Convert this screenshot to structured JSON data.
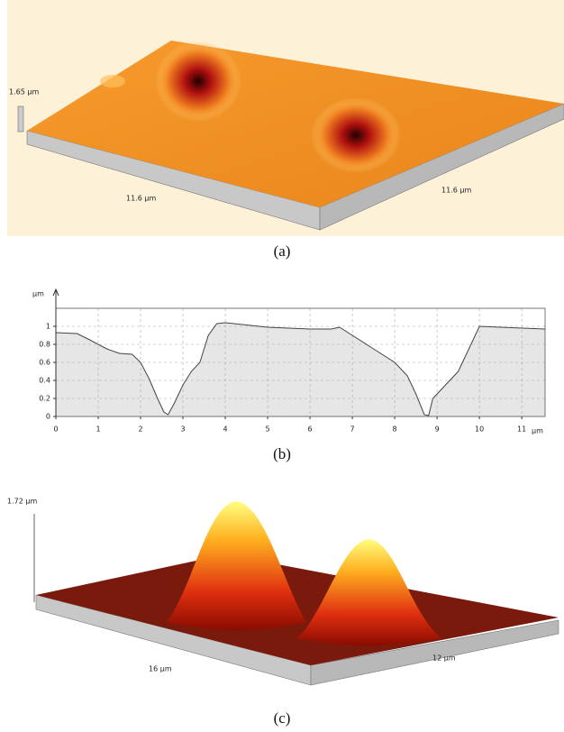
{
  "panel_a": {
    "z_label": "1.65 µm",
    "x_label": "11.6 µm",
    "y_label": "11.6 µm",
    "caption": "(a)"
  },
  "chart_data": {
    "type": "line",
    "ylabel": "µm",
    "xlabel": "µm",
    "caption": "(b)",
    "x": [
      0,
      0.5,
      0.8,
      1.2,
      1.5,
      1.8,
      2.0,
      2.2,
      2.4,
      2.55,
      2.65,
      2.8,
      3.0,
      3.2,
      3.4,
      3.5,
      3.6,
      3.8,
      4.0,
      5.0,
      6.0,
      6.5,
      6.7,
      6.9,
      7.5,
      8.0,
      8.3,
      8.5,
      8.7,
      8.8,
      8.9,
      9.1,
      9.5,
      9.8,
      10.0,
      10.5,
      11.55
    ],
    "values": [
      0.93,
      0.92,
      0.85,
      0.75,
      0.7,
      0.69,
      0.6,
      0.42,
      0.2,
      0.05,
      0.02,
      0.15,
      0.35,
      0.5,
      0.6,
      0.75,
      0.9,
      1.03,
      1.04,
      0.99,
      0.97,
      0.97,
      0.99,
      0.93,
      0.75,
      0.6,
      0.45,
      0.25,
      0.02,
      0.01,
      0.2,
      0.3,
      0.5,
      0.8,
      1.0,
      0.99,
      0.97
    ],
    "color": "#444444",
    "fill": "#e6e6e6",
    "xlim": [
      0,
      11.55
    ],
    "ylim": [
      0,
      1.2
    ],
    "xticks": [
      0,
      1,
      2,
      3,
      4,
      5,
      6,
      7,
      8,
      9,
      10,
      11
    ],
    "yticks": [
      0,
      0.2,
      0.4,
      0.6,
      0.8,
      1
    ],
    "grid": true
  },
  "panel_c": {
    "z_label": "1.72 µm",
    "x_label": "16 µm",
    "y_label": "12 µm",
    "caption": "(c)"
  }
}
